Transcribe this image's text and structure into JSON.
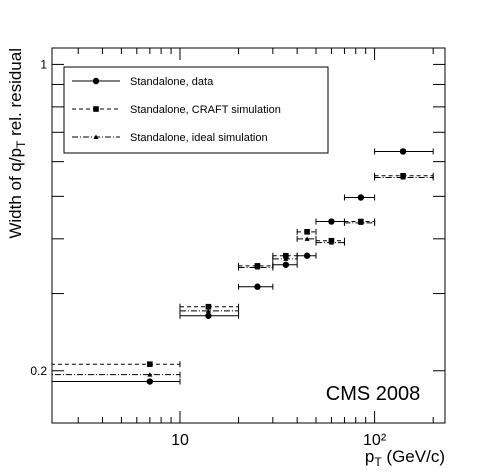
{
  "chart_data": {
    "type": "scatter",
    "annotation": "CMS 2008",
    "xlabel": [
      "p",
      "T",
      " (GeV/c)"
    ],
    "ylabel": [
      "Width of q/p",
      "T",
      " rel. residual"
    ],
    "log_x": true,
    "log_y": true,
    "xlim": [
      2.2,
      230
    ],
    "ylim": [
      0.152,
      1.09
    ],
    "xticks": [
      10,
      {
        "value": 100,
        "label": "10²"
      }
    ],
    "xminor": [
      3,
      4,
      5,
      6,
      7,
      8,
      9,
      20,
      30,
      40,
      50,
      60,
      70,
      80,
      90,
      200
    ],
    "yticks": [
      0.2,
      1
    ],
    "yminor": [
      0.3,
      0.4,
      0.5,
      0.6,
      0.7,
      0.8,
      0.9
    ],
    "bins": [
      2,
      10,
      20,
      30,
      40,
      50,
      70,
      100,
      200
    ],
    "x": [
      7,
      14,
      25,
      35,
      45,
      60,
      85,
      140
    ],
    "legend": "upper left",
    "series": [
      {
        "name": "Standalone, data",
        "color": "#000000",
        "marker": "circle",
        "dash": "none",
        "values": [
          0.189,
          0.267,
          0.311,
          0.349,
          0.366,
          0.438,
          0.497,
          0.633
        ]
      },
      {
        "name": "Standalone, CRAFT simulation",
        "color": "#000000",
        "marker": "square",
        "dash": "4,3",
        "values": [
          0.207,
          0.28,
          0.347,
          0.366,
          0.415,
          0.396,
          0.438,
          0.557
        ]
      },
      {
        "name": "Standalone, ideal simulation",
        "color": "#000000",
        "marker": "triangle",
        "dash": "6,2,1,2",
        "values": [
          0.196,
          0.274,
          0.344,
          0.36,
          0.4,
          0.392,
          0.435,
          0.552
        ]
      }
    ]
  }
}
